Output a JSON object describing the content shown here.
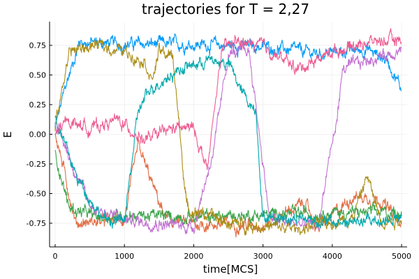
{
  "chart_data": {
    "type": "line",
    "title": "trajectories for T = 2,27",
    "xlabel": "time[MCS]",
    "ylabel": "E",
    "xlim": [
      -80,
      5080
    ],
    "ylim": [
      -0.95,
      0.95
    ],
    "x_ticks": [
      0,
      1000,
      2000,
      3000,
      4000,
      5000
    ],
    "x_tick_labels": [
      "0",
      "1000",
      "2000",
      "3000",
      "4000",
      "5000"
    ],
    "y_ticks": [
      -0.75,
      -0.5,
      -0.25,
      0.0,
      0.25,
      0.5,
      0.75
    ],
    "y_tick_labels": [
      "-0.75",
      "-0.50",
      "-0.25",
      "0.00",
      "0.25",
      "0.50",
      "0.75"
    ],
    "grid": true,
    "legend": "none",
    "series": [
      {
        "color": "#009af9",
        "noise": 0.035,
        "keypoints": [
          [
            0,
            0.05
          ],
          [
            150,
            0.4
          ],
          [
            350,
            0.78
          ],
          [
            1000,
            0.76
          ],
          [
            2000,
            0.76
          ],
          [
            3000,
            0.74
          ],
          [
            3800,
            0.68
          ],
          [
            4500,
            0.72
          ],
          [
            4800,
            0.62
          ],
          [
            5000,
            0.38
          ]
        ]
      },
      {
        "color": "#e26f46",
        "noise": 0.035,
        "keypoints": [
          [
            0,
            0.02
          ],
          [
            300,
            -0.75
          ],
          [
            1000,
            -0.72
          ],
          [
            1200,
            -0.1
          ],
          [
            1400,
            -0.42
          ],
          [
            1600,
            -0.72
          ],
          [
            2000,
            -0.76
          ],
          [
            3000,
            -0.76
          ],
          [
            3600,
            -0.58
          ],
          [
            3800,
            -0.8
          ],
          [
            4300,
            -0.52
          ],
          [
            4700,
            -0.55
          ],
          [
            5000,
            -0.78
          ]
        ]
      },
      {
        "color": "#3da44d",
        "noise": 0.035,
        "keypoints": [
          [
            0,
            -0.15
          ],
          [
            200,
            -0.62
          ],
          [
            600,
            -0.7
          ],
          [
            1000,
            -0.68
          ],
          [
            2000,
            -0.7
          ],
          [
            3000,
            -0.68
          ],
          [
            4000,
            -0.66
          ],
          [
            5000,
            -0.66
          ]
        ]
      },
      {
        "color": "#c271d2",
        "noise": 0.035,
        "keypoints": [
          [
            0,
            0.1
          ],
          [
            500,
            -0.6
          ],
          [
            1000,
            -0.72
          ],
          [
            2000,
            -0.78
          ],
          [
            2300,
            -0.1
          ],
          [
            2500,
            0.68
          ],
          [
            2800,
            0.7
          ],
          [
            3100,
            -0.72
          ],
          [
            3800,
            -0.78
          ],
          [
            3950,
            -0.2
          ],
          [
            4050,
            0.05
          ],
          [
            4150,
            0.55
          ],
          [
            4500,
            0.62
          ],
          [
            5000,
            0.72
          ]
        ]
      },
      {
        "color": "#ac8e18",
        "noise": 0.035,
        "keypoints": [
          [
            0,
            0.05
          ],
          [
            200,
            0.7
          ],
          [
            600,
            0.75
          ],
          [
            1000,
            0.7
          ],
          [
            1300,
            0.62
          ],
          [
            1400,
            0.45
          ],
          [
            1500,
            0.7
          ],
          [
            1700,
            0.65
          ],
          [
            1900,
            -0.62
          ],
          [
            2500,
            -0.75
          ],
          [
            3500,
            -0.8
          ],
          [
            4300,
            -0.7
          ],
          [
            4500,
            -0.35
          ],
          [
            4700,
            -0.72
          ],
          [
            5000,
            -0.72
          ]
        ]
      },
      {
        "color": "#00a9ad",
        "noise": 0.035,
        "keypoints": [
          [
            0,
            0.15
          ],
          [
            300,
            -0.35
          ],
          [
            700,
            -0.72
          ],
          [
            1000,
            -0.73
          ],
          [
            1200,
            0.2
          ],
          [
            1400,
            0.4
          ],
          [
            1800,
            0.55
          ],
          [
            2200,
            0.62
          ],
          [
            2500,
            0.6
          ],
          [
            2700,
            0.35
          ],
          [
            2900,
            0.2
          ],
          [
            3000,
            -0.7
          ],
          [
            3500,
            -0.7
          ],
          [
            4000,
            -0.75
          ],
          [
            5000,
            -0.72
          ]
        ]
      },
      {
        "color": "#ed5d92",
        "noise": 0.035,
        "keypoints": [
          [
            0,
            0.0
          ],
          [
            200,
            0.12
          ],
          [
            500,
            0.05
          ],
          [
            900,
            0.12
          ],
          [
            1300,
            -0.05
          ],
          [
            1700,
            0.05
          ],
          [
            2000,
            0.05
          ],
          [
            2200,
            -0.3
          ],
          [
            2400,
            0.7
          ],
          [
            2600,
            0.78
          ],
          [
            3000,
            0.74
          ],
          [
            3500,
            0.55
          ],
          [
            4000,
            0.7
          ],
          [
            4500,
            0.78
          ],
          [
            5000,
            0.8
          ]
        ]
      }
    ]
  }
}
